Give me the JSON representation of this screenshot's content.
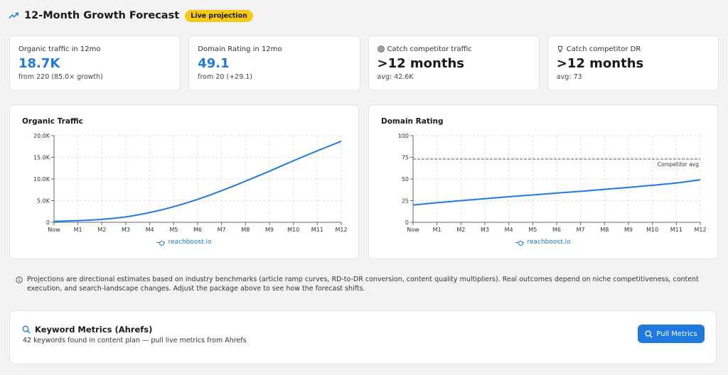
{
  "header": {
    "title": "12-Month Growth Forecast",
    "badge": "Live projection",
    "icon": "trending-up-icon"
  },
  "kpis": [
    {
      "label": "Organic traffic in 12mo",
      "value": "18.7K",
      "sub": "from 220 (85.0× growth)",
      "accent": true
    },
    {
      "label": "Domain Rating in 12mo",
      "value": "49.1",
      "sub": "from 20 (+29.1)",
      "accent": true
    },
    {
      "label": "Catch competitor traffic",
      "value": ">12 months",
      "sub": "avg: 42.6K",
      "icon": "target-icon"
    },
    {
      "label": "Catch competitor DR",
      "value": ">12 months",
      "sub": "avg: 73",
      "icon": "trophy-icon"
    }
  ],
  "colors": {
    "accent": "#1f7ae0",
    "badge": "#f6c915",
    "reference_line": "#555555"
  },
  "chart_data": [
    {
      "type": "line",
      "title": "Organic Traffic",
      "categories": [
        "Now",
        "M1",
        "M2",
        "M3",
        "M4",
        "M5",
        "M6",
        "M7",
        "M8",
        "M9",
        "M10",
        "M11",
        "M12"
      ],
      "series": [
        {
          "name": "reachboost.io",
          "values": [
            220,
            380,
            680,
            1250,
            2250,
            3600,
            5300,
            7300,
            9500,
            11800,
            14200,
            16500,
            18700
          ]
        }
      ],
      "ylim": [
        0,
        20000
      ],
      "yticks": [
        0,
        5000,
        10000,
        15000,
        20000
      ],
      "ytick_labels": [
        "0",
        "5.0K",
        "10.0K",
        "15.0K",
        "20.0K"
      ],
      "grid": true,
      "legend": "bottom-center"
    },
    {
      "type": "line",
      "title": "Domain Rating",
      "categories": [
        "Now",
        "M1",
        "M2",
        "M3",
        "M4",
        "M5",
        "M6",
        "M7",
        "M8",
        "M9",
        "M10",
        "M11",
        "M12"
      ],
      "series": [
        {
          "name": "reachboost.io",
          "values": [
            20,
            22.6,
            25,
            27.3,
            29.5,
            31.6,
            33.7,
            35.8,
            38,
            40.3,
            42.7,
            45.4,
            49.1
          ]
        }
      ],
      "reference": {
        "label": "Competitor avg",
        "value": 73
      },
      "ylim": [
        0,
        100
      ],
      "yticks": [
        0,
        25,
        50,
        75,
        100
      ],
      "ytick_labels": [
        "0",
        "25",
        "50",
        "75",
        "100"
      ],
      "grid": true,
      "legend": "bottom-center"
    }
  ],
  "note": {
    "icon": "info-icon",
    "text": "Projections are directional estimates based on industry benchmarks (article ramp curves, RD-to-DR conversion, content quality multipliers). Real outcomes depend on niche competitiveness, content execution, and search-landscape changes. Adjust the package above to see how the forecast shifts."
  },
  "keywords": {
    "icon": "search-icon",
    "title": "Keyword Metrics (Ahrefs)",
    "subtitle": "42 keywords found in content plan — pull live metrics from Ahrefs",
    "button": "Pull Metrics"
  }
}
